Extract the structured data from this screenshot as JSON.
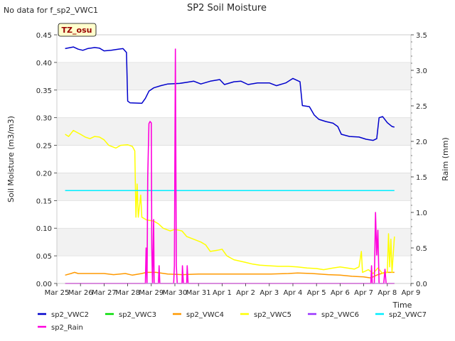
{
  "note": "No data for f_sp2_VWC1",
  "badge": "TZ_osu",
  "chart_data": {
    "type": "line",
    "title": "SP2 Soil Moisture",
    "xlabel": "Time",
    "ylabel": "Soil Moisture (m3/m3)",
    "y2label": "Raim (mm)",
    "xlim": [
      0,
      15
    ],
    "ylim": [
      0,
      0.45
    ],
    "y2lim": [
      0,
      3.5
    ],
    "x_tick_labels": [
      "Mar 25",
      "Mar 26",
      "Mar 27",
      "Mar 28",
      "Mar 29",
      "Mar 30",
      "Mar 31",
      "Apr 1",
      "Apr 2",
      "Apr 3",
      "Apr 4",
      "Apr 5",
      "Apr 6",
      "Apr 7",
      "Apr 8",
      "Apr 9"
    ],
    "y_ticks": [
      0.0,
      0.05,
      0.1,
      0.15,
      0.2,
      0.25,
      0.3,
      0.35,
      0.4,
      0.45
    ],
    "y_tick_labels": [
      "0.00",
      "0.05",
      "0.10",
      "0.15",
      "0.20",
      "0.25",
      "0.30",
      "0.35",
      "0.40",
      "0.45"
    ],
    "y2_ticks": [
      0,
      0.5,
      1,
      1.5,
      2,
      2.5,
      3,
      3.5
    ],
    "y2_tick_labels": [
      "0.0",
      "0.5",
      "1.0",
      "1.5",
      "2.0",
      "2.5",
      "3.0",
      "3.5"
    ],
    "grid": "horizontal bands",
    "legend_position": "bottom",
    "series": [
      {
        "name": "sp2_VWC2",
        "color": "#0000cc",
        "axis": "left",
        "points": [
          [
            0.35,
            0.425
          ],
          [
            0.7,
            0.428
          ],
          [
            0.9,
            0.424
          ],
          [
            1.1,
            0.422
          ],
          [
            1.3,
            0.425
          ],
          [
            1.6,
            0.427
          ],
          [
            1.8,
            0.426
          ],
          [
            2.0,
            0.421
          ],
          [
            2.3,
            0.422
          ],
          [
            2.6,
            0.424
          ],
          [
            2.8,
            0.425
          ],
          [
            2.95,
            0.418
          ],
          [
            3.0,
            0.33
          ],
          [
            3.1,
            0.327
          ],
          [
            3.6,
            0.326
          ],
          [
            3.75,
            0.335
          ],
          [
            3.9,
            0.348
          ],
          [
            4.1,
            0.354
          ],
          [
            4.4,
            0.358
          ],
          [
            4.7,
            0.361
          ],
          [
            5.2,
            0.362
          ],
          [
            5.5,
            0.364
          ],
          [
            5.8,
            0.366
          ],
          [
            6.1,
            0.361
          ],
          [
            6.5,
            0.366
          ],
          [
            6.9,
            0.369
          ],
          [
            7.1,
            0.36
          ],
          [
            7.5,
            0.365
          ],
          [
            7.8,
            0.366
          ],
          [
            8.1,
            0.36
          ],
          [
            8.5,
            0.363
          ],
          [
            9.0,
            0.363
          ],
          [
            9.3,
            0.358
          ],
          [
            9.7,
            0.363
          ],
          [
            10.0,
            0.371
          ],
          [
            10.3,
            0.365
          ],
          [
            10.4,
            0.322
          ],
          [
            10.7,
            0.32
          ],
          [
            10.9,
            0.305
          ],
          [
            11.1,
            0.297
          ],
          [
            11.4,
            0.293
          ],
          [
            11.7,
            0.29
          ],
          [
            11.9,
            0.284
          ],
          [
            12.05,
            0.27
          ],
          [
            12.4,
            0.266
          ],
          [
            12.8,
            0.265
          ],
          [
            13.1,
            0.261
          ],
          [
            13.4,
            0.259
          ],
          [
            13.55,
            0.262
          ],
          [
            13.65,
            0.3
          ],
          [
            13.8,
            0.302
          ],
          [
            14.0,
            0.291
          ],
          [
            14.2,
            0.284
          ],
          [
            14.3,
            0.283
          ]
        ]
      },
      {
        "name": "sp2_VWC3",
        "color": "#00dd00",
        "axis": "left",
        "points": []
      },
      {
        "name": "sp2_VWC4",
        "color": "#ff9900",
        "axis": "left",
        "points": [
          [
            0.35,
            0.015
          ],
          [
            0.6,
            0.018
          ],
          [
            0.75,
            0.02
          ],
          [
            0.9,
            0.018
          ],
          [
            1.5,
            0.018
          ],
          [
            2.0,
            0.018
          ],
          [
            2.4,
            0.016
          ],
          [
            2.9,
            0.018
          ],
          [
            3.2,
            0.015
          ],
          [
            3.6,
            0.018
          ],
          [
            3.8,
            0.02
          ],
          [
            4.2,
            0.02
          ],
          [
            4.7,
            0.017
          ],
          [
            5.3,
            0.016
          ],
          [
            6.0,
            0.017
          ],
          [
            7.0,
            0.017
          ],
          [
            8.0,
            0.017
          ],
          [
            9.0,
            0.017
          ],
          [
            9.8,
            0.018
          ],
          [
            10.2,
            0.019
          ],
          [
            10.8,
            0.018
          ],
          [
            11.5,
            0.016
          ],
          [
            12.0,
            0.015
          ],
          [
            12.5,
            0.013
          ],
          [
            13.0,
            0.012
          ],
          [
            13.3,
            0.01
          ],
          [
            13.6,
            0.016
          ],
          [
            13.9,
            0.02
          ],
          [
            14.3,
            0.02
          ]
        ]
      },
      {
        "name": "sp2_VWC5",
        "color": "#ffff00",
        "axis": "left",
        "points": [
          [
            0.35,
            0.27
          ],
          [
            0.5,
            0.266
          ],
          [
            0.7,
            0.277
          ],
          [
            1.0,
            0.27
          ],
          [
            1.2,
            0.265
          ],
          [
            1.4,
            0.262
          ],
          [
            1.6,
            0.266
          ],
          [
            1.8,
            0.265
          ],
          [
            2.0,
            0.26
          ],
          [
            2.2,
            0.25
          ],
          [
            2.5,
            0.245
          ],
          [
            2.7,
            0.25
          ],
          [
            3.0,
            0.251
          ],
          [
            3.2,
            0.248
          ],
          [
            3.3,
            0.24
          ],
          [
            3.35,
            0.12
          ],
          [
            3.4,
            0.18
          ],
          [
            3.45,
            0.12
          ],
          [
            3.55,
            0.16
          ],
          [
            3.6,
            0.12
          ],
          [
            3.8,
            0.115
          ],
          [
            4.1,
            0.113
          ],
          [
            4.3,
            0.108
          ],
          [
            4.5,
            0.1
          ],
          [
            4.8,
            0.095
          ],
          [
            5.0,
            0.098
          ],
          [
            5.3,
            0.095
          ],
          [
            5.5,
            0.085
          ],
          [
            5.8,
            0.08
          ],
          [
            6.1,
            0.075
          ],
          [
            6.3,
            0.07
          ],
          [
            6.5,
            0.058
          ],
          [
            6.8,
            0.06
          ],
          [
            7.0,
            0.062
          ],
          [
            7.2,
            0.05
          ],
          [
            7.5,
            0.043
          ],
          [
            7.8,
            0.04
          ],
          [
            8.0,
            0.038
          ],
          [
            8.3,
            0.035
          ],
          [
            8.6,
            0.033
          ],
          [
            9.0,
            0.032
          ],
          [
            9.4,
            0.031
          ],
          [
            9.8,
            0.031
          ],
          [
            10.2,
            0.03
          ],
          [
            10.6,
            0.028
          ],
          [
            11.0,
            0.027
          ],
          [
            11.3,
            0.025
          ],
          [
            11.7,
            0.028
          ],
          [
            12.0,
            0.03
          ],
          [
            12.3,
            0.028
          ],
          [
            12.6,
            0.026
          ],
          [
            12.8,
            0.03
          ],
          [
            12.9,
            0.058
          ],
          [
            12.95,
            0.02
          ],
          [
            13.2,
            0.025
          ],
          [
            13.4,
            0.018
          ],
          [
            13.6,
            0.028
          ],
          [
            13.8,
            0.018
          ],
          [
            14.0,
            0.02
          ],
          [
            14.05,
            0.09
          ],
          [
            14.1,
            0.03
          ],
          [
            14.15,
            0.08
          ],
          [
            14.2,
            0.02
          ],
          [
            14.3,
            0.085
          ]
        ]
      },
      {
        "name": "sp2_VWC6",
        "color": "#9933ff",
        "axis": "left",
        "points": [
          [
            0.35,
            0.0
          ],
          [
            14.3,
            0.0
          ]
        ]
      },
      {
        "name": "sp2_VWC7",
        "color": "#00eeff",
        "axis": "left",
        "points": [
          [
            0.35,
            0.168
          ],
          [
            14.3,
            0.168
          ]
        ]
      },
      {
        "name": "sp2_Rain",
        "color": "#ff00dd",
        "axis": "right",
        "points": [
          [
            0.35,
            0
          ],
          [
            3.75,
            0
          ],
          [
            3.78,
            0.5
          ],
          [
            3.82,
            0
          ],
          [
            3.85,
            1.5
          ],
          [
            3.9,
            2.25
          ],
          [
            3.95,
            2.28
          ],
          [
            4.0,
            2.26
          ],
          [
            4.02,
            0.5
          ],
          [
            4.05,
            0
          ],
          [
            4.1,
            0.9
          ],
          [
            4.12,
            0
          ],
          [
            4.3,
            0
          ],
          [
            4.33,
            0.25
          ],
          [
            4.36,
            0
          ],
          [
            4.95,
            0
          ],
          [
            4.98,
            0.25
          ],
          [
            5.02,
            3.3
          ],
          [
            5.06,
            0.25
          ],
          [
            5.1,
            0
          ],
          [
            5.3,
            0
          ],
          [
            5.32,
            0.25
          ],
          [
            5.36,
            0
          ],
          [
            5.5,
            0
          ],
          [
            5.52,
            0.25
          ],
          [
            5.56,
            0
          ],
          [
            13.3,
            0
          ],
          [
            13.33,
            0.25
          ],
          [
            13.36,
            0
          ],
          [
            13.45,
            0
          ],
          [
            13.5,
            1.0
          ],
          [
            13.55,
            0.4
          ],
          [
            13.6,
            0.75
          ],
          [
            13.65,
            0
          ],
          [
            13.85,
            0
          ],
          [
            13.9,
            0.2
          ],
          [
            13.95,
            0
          ],
          [
            14.3,
            0
          ]
        ]
      }
    ]
  }
}
